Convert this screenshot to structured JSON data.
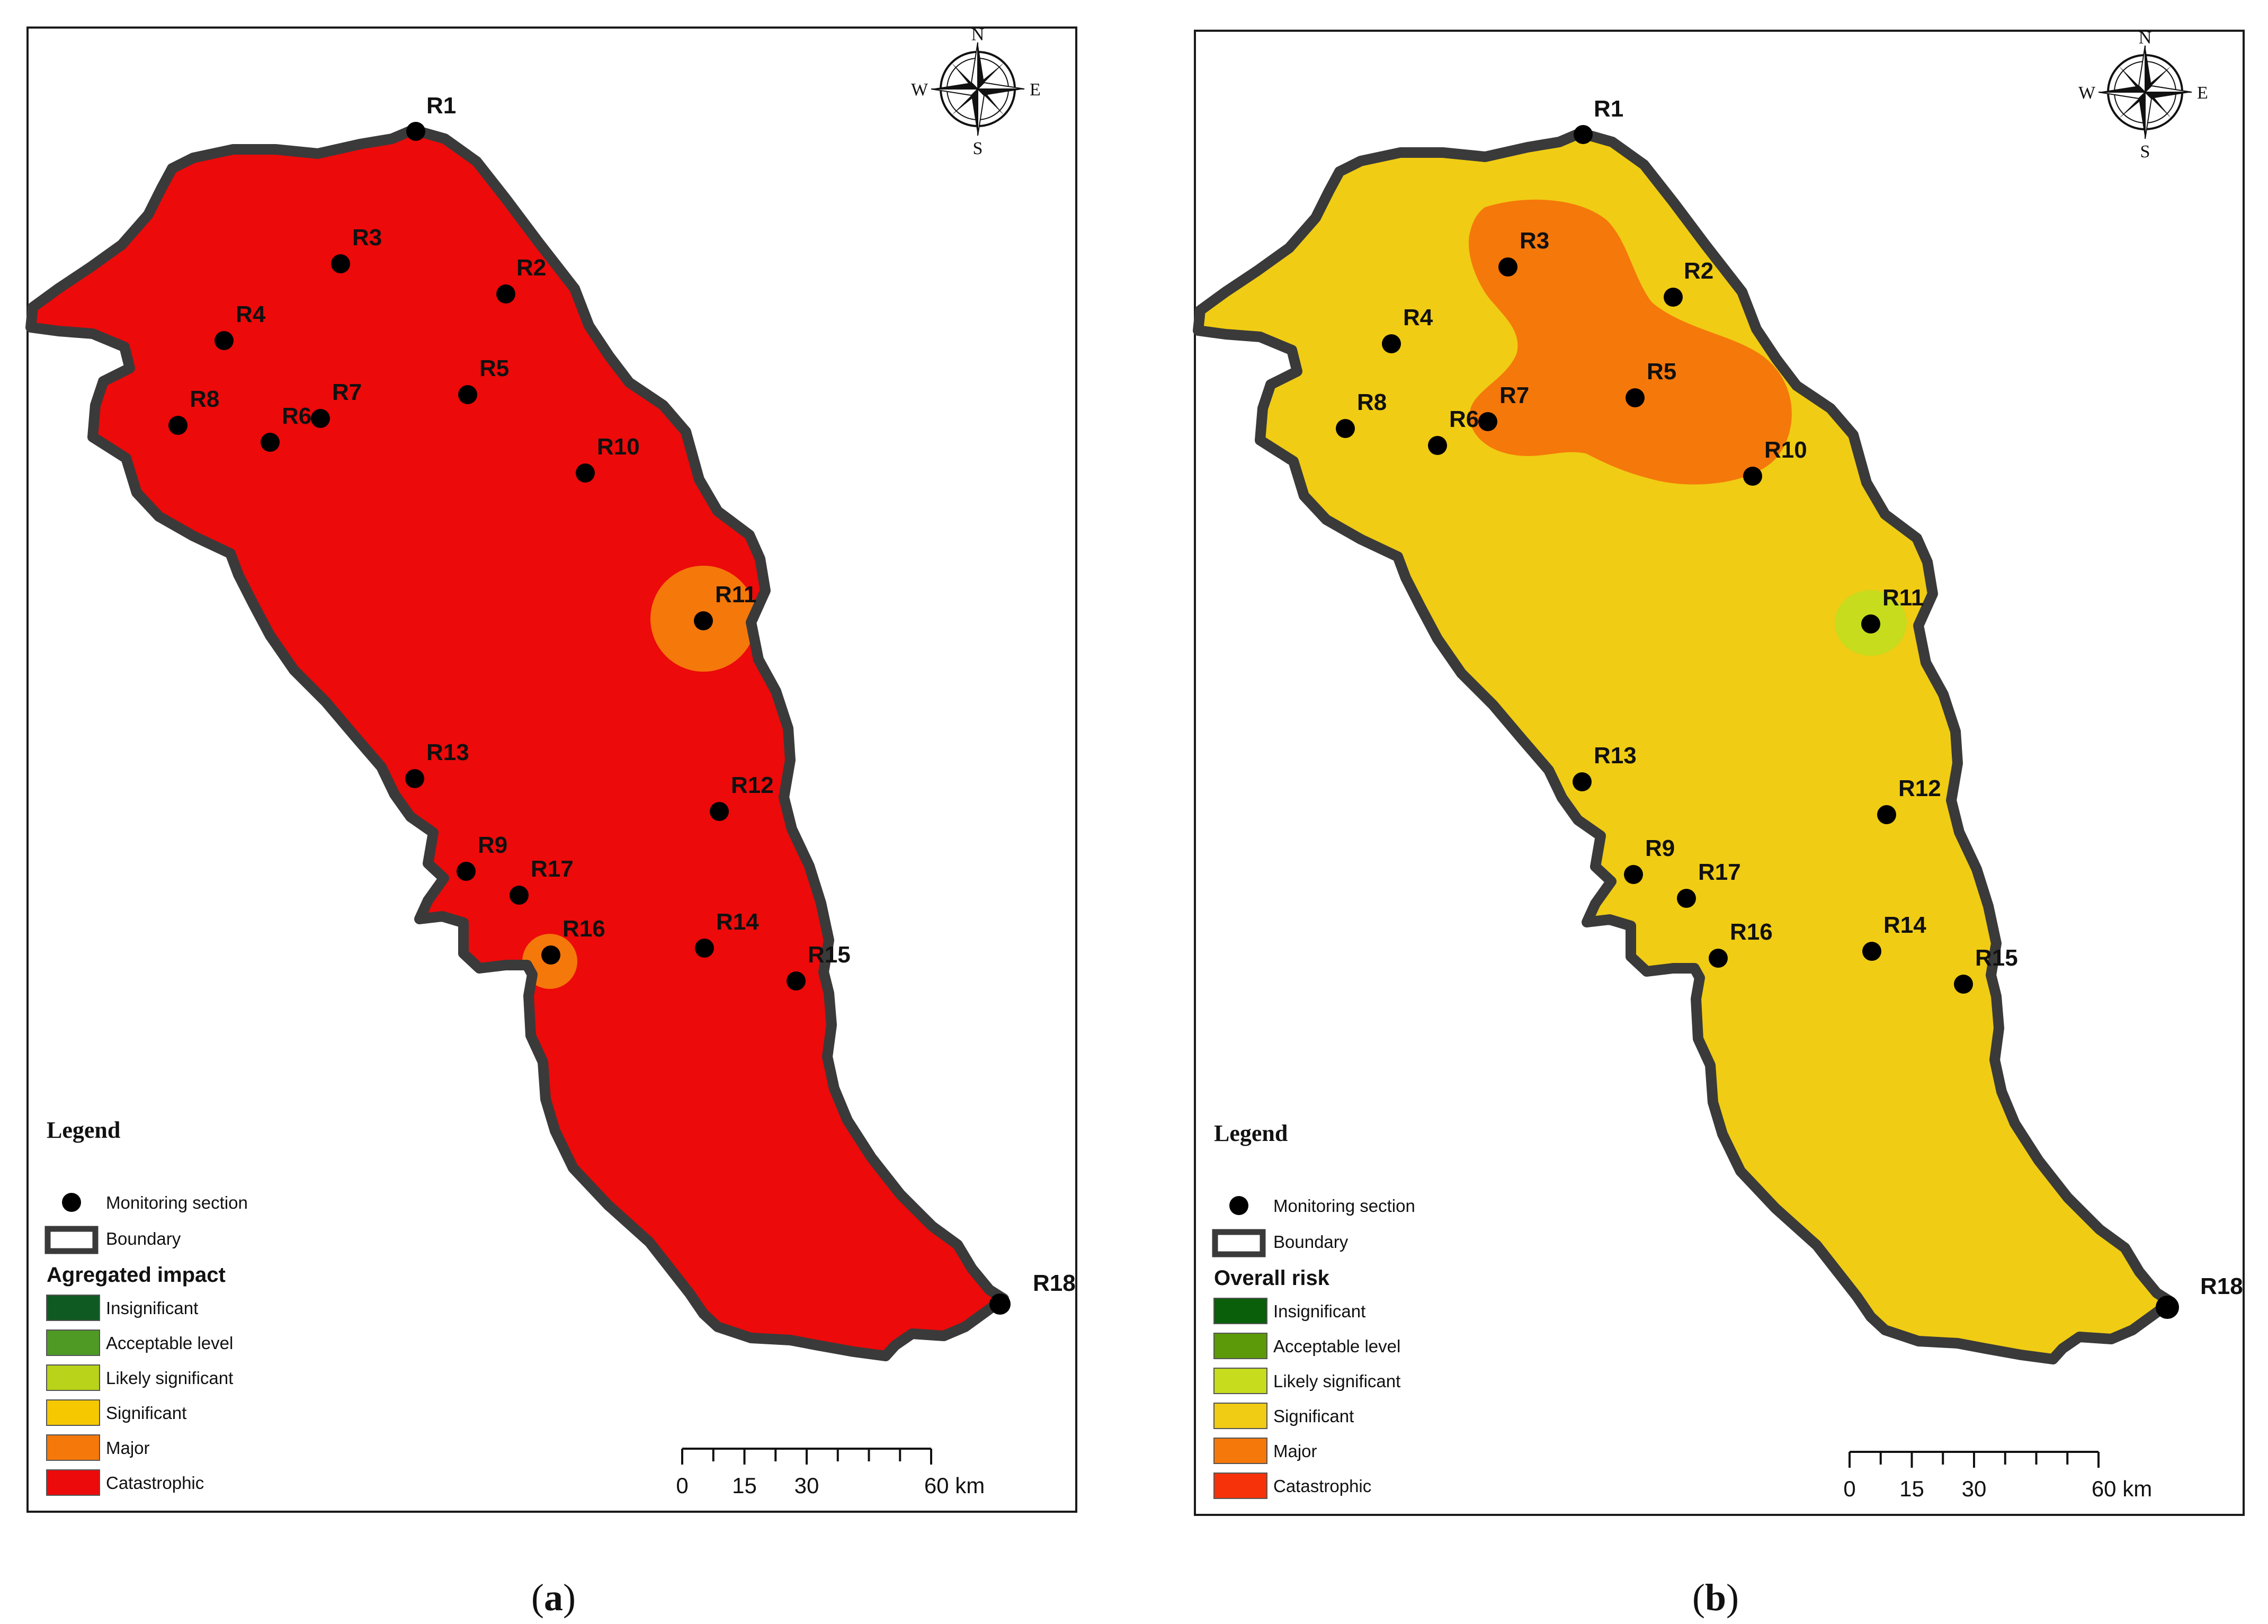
{
  "panels": [
    {
      "id": "a",
      "caption_letter": "a",
      "fill_color": "#ec0a0a",
      "legend": {
        "title": "Legend",
        "monitoring_label": "Monitoring section",
        "boundary_label": "Boundary",
        "classification_title": "Agregated impact",
        "classes": [
          {
            "label": "Insignificant",
            "color": "#0f5a22"
          },
          {
            "label": "Acceptable level",
            "color": "#4e9a24"
          },
          {
            "label": "Likely significant",
            "color": "#b9d31a"
          },
          {
            "label": "Significant",
            "color": "#f5c800"
          },
          {
            "label": "Major",
            "color": "#f5780a"
          },
          {
            "label": "Catastrophic",
            "color": "#ec0a0a"
          }
        ]
      },
      "zones": [
        {
          "class": "Major",
          "near": "R11"
        },
        {
          "class": "Major",
          "near": "R16"
        }
      ]
    },
    {
      "id": "b",
      "caption_letter": "b",
      "fill_color": "#f0cc14",
      "legend": {
        "title": "Legend",
        "monitoring_label": "Monitoring section",
        "boundary_label": "Boundary",
        "classification_title": "Overall risk",
        "classes": [
          {
            "label": "Insignificant",
            "color": "#0a5f0a"
          },
          {
            "label": "Acceptable level",
            "color": "#5c9a0a"
          },
          {
            "label": "Likely significant",
            "color": "#c6dc1c"
          },
          {
            "label": "Significant",
            "color": "#f0cc14"
          },
          {
            "label": "Major",
            "color": "#f5780a"
          },
          {
            "label": "Catastrophic",
            "color": "#f5320a"
          }
        ]
      },
      "zones": [
        {
          "class": "Major",
          "near": "R3, R5, R7"
        },
        {
          "class": "Likely significant",
          "near": "R11"
        }
      ]
    }
  ],
  "stations": [
    "R1",
    "R2",
    "R3",
    "R4",
    "R5",
    "R6",
    "R7",
    "R8",
    "R9",
    "R10",
    "R11",
    "R12",
    "R13",
    "R14",
    "R15",
    "R16",
    "R17",
    "R18"
  ],
  "compass": {
    "n": "N",
    "s": "S",
    "e": "E",
    "w": "W"
  },
  "scalebar": {
    "ticks": [
      "0",
      "15",
      "30"
    ],
    "end_label": "60 km"
  },
  "boundary_color": "#3a3a3a"
}
